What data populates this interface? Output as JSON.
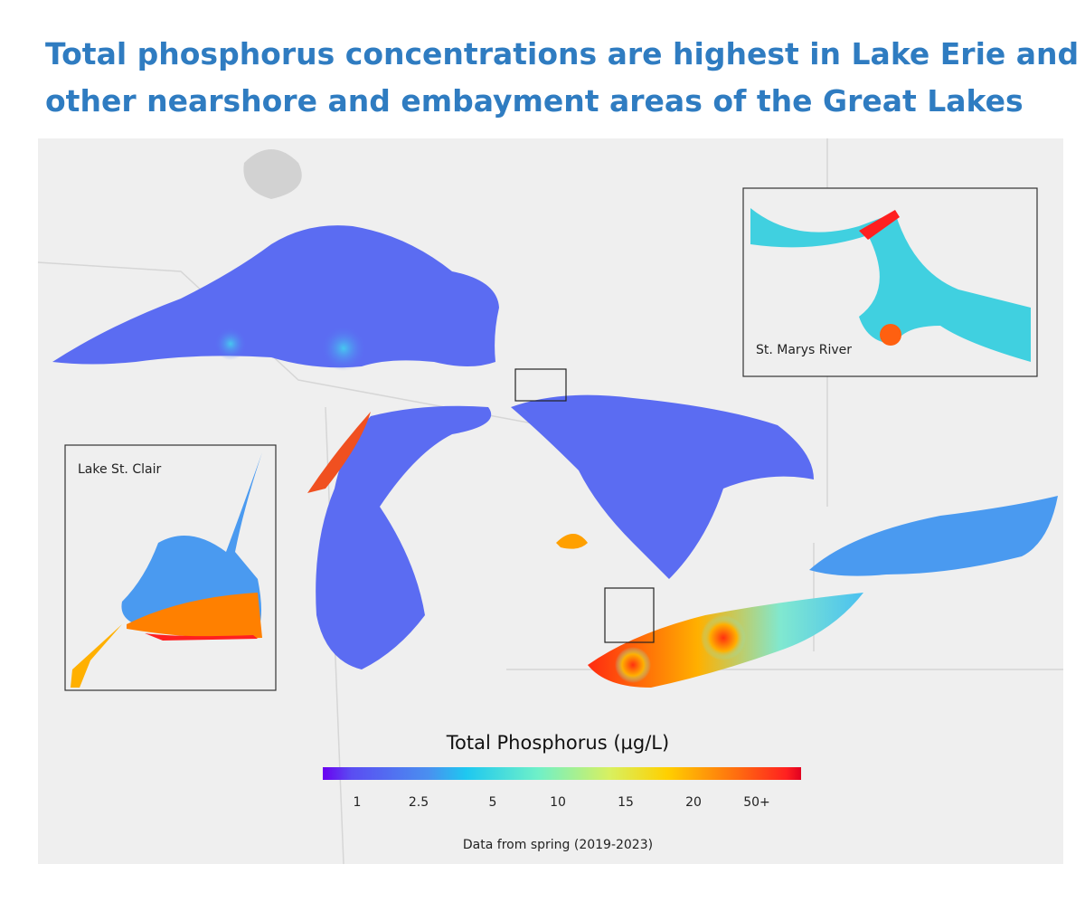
{
  "header": {
    "title_line_1": "Total phosphorus concentrations are highest in Lake Erie and",
    "title_line_2": "other nearshore and embayment areas of the Great Lakes"
  },
  "map": {
    "insets": [
      {
        "label": "St. Marys River"
      },
      {
        "label": "Lake St. Clair"
      }
    ]
  },
  "legend": {
    "title": "Total Phosphorus (µg/L)",
    "labels": [
      "1",
      "2.5",
      "5",
      "10",
      "15",
      "20",
      "50+"
    ]
  },
  "footnote": "Data from spring (2019-2023)"
}
